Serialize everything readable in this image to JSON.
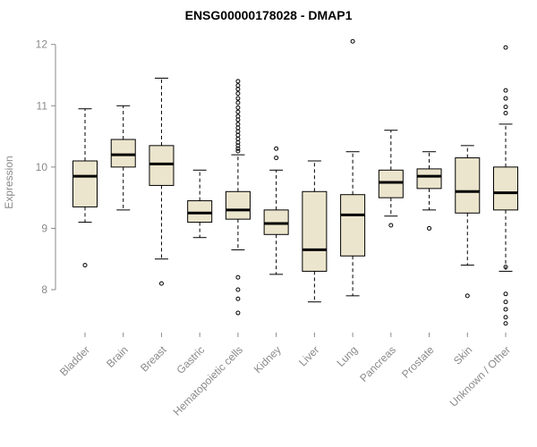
{
  "header": {
    "title": "ENSG00000178028 - DMAP1"
  },
  "chart_data": {
    "type": "boxplot",
    "title": "ENSG00000178028 - DMAP1",
    "xlabel": "",
    "ylabel": "Expression",
    "ylim": [
      7.3,
      12.2
    ],
    "yticks": [
      8,
      9,
      10,
      11,
      12
    ],
    "grid": false,
    "legend": "none",
    "box_fill_color": "#ece5cd",
    "box_stroke_color": "#000000",
    "median_color": "#000000",
    "axis_color": "#8a8a8a",
    "categories": [
      "Bladder",
      "Brain",
      "Breast",
      "Gastric",
      "Hematopoietic cells",
      "Kidney",
      "Liver",
      "Lung",
      "Pancreas",
      "Prostate",
      "Skin",
      "Unknown / Other"
    ],
    "series": [
      {
        "category": "Bladder",
        "whisker_low": 9.1,
        "q1": 9.35,
        "median": 9.85,
        "q3": 10.1,
        "whisker_high": 10.95,
        "outliers": [
          8.4
        ]
      },
      {
        "category": "Brain",
        "whisker_low": 9.3,
        "q1": 10.0,
        "median": 10.2,
        "q3": 10.45,
        "whisker_high": 11.0,
        "outliers": []
      },
      {
        "category": "Breast",
        "whisker_low": 8.5,
        "q1": 9.7,
        "median": 10.05,
        "q3": 10.35,
        "whisker_high": 11.45,
        "outliers": [
          8.1
        ]
      },
      {
        "category": "Gastric",
        "whisker_low": 8.85,
        "q1": 9.1,
        "median": 9.25,
        "q3": 9.45,
        "whisker_high": 9.95,
        "outliers": []
      },
      {
        "category": "Hematopoietic cells",
        "whisker_low": 8.65,
        "q1": 9.15,
        "median": 9.3,
        "q3": 9.6,
        "whisker_high": 10.2,
        "outliers": [
          11.4,
          11.33,
          11.27,
          11.2,
          11.12,
          11.05,
          10.97,
          10.9,
          10.83,
          10.77,
          10.7,
          10.64,
          10.58,
          10.52,
          10.46,
          10.4,
          10.35,
          10.3,
          10.26,
          8.2,
          8.0,
          7.85,
          7.62
        ]
      },
      {
        "category": "Kidney",
        "whisker_low": 8.25,
        "q1": 8.9,
        "median": 9.08,
        "q3": 9.3,
        "whisker_high": 9.95,
        "outliers": [
          10.3,
          10.15
        ]
      },
      {
        "category": "Liver",
        "whisker_low": 7.8,
        "q1": 8.3,
        "median": 8.65,
        "q3": 9.6,
        "whisker_high": 10.1,
        "outliers": []
      },
      {
        "category": "Lung",
        "whisker_low": 7.9,
        "q1": 8.55,
        "median": 9.22,
        "q3": 9.55,
        "whisker_high": 10.25,
        "outliers": [
          12.05
        ]
      },
      {
        "category": "Pancreas",
        "whisker_low": 9.2,
        "q1": 9.5,
        "median": 9.75,
        "q3": 9.95,
        "whisker_high": 10.6,
        "outliers": [
          9.05
        ]
      },
      {
        "category": "Prostate",
        "whisker_low": 9.3,
        "q1": 9.65,
        "median": 9.85,
        "q3": 9.97,
        "whisker_high": 10.25,
        "outliers": [
          9.0
        ]
      },
      {
        "category": "Skin",
        "whisker_low": 8.4,
        "q1": 9.25,
        "median": 9.6,
        "q3": 10.15,
        "whisker_high": 10.35,
        "outliers": [
          7.9
        ]
      },
      {
        "category": "Unknown / Other",
        "whisker_low": 8.3,
        "q1": 9.3,
        "median": 9.58,
        "q3": 10.0,
        "whisker_high": 10.7,
        "outliers": [
          11.95,
          11.25,
          11.12,
          10.98,
          10.88,
          8.37,
          7.93,
          7.8,
          7.68,
          7.55,
          7.45
        ]
      }
    ]
  }
}
